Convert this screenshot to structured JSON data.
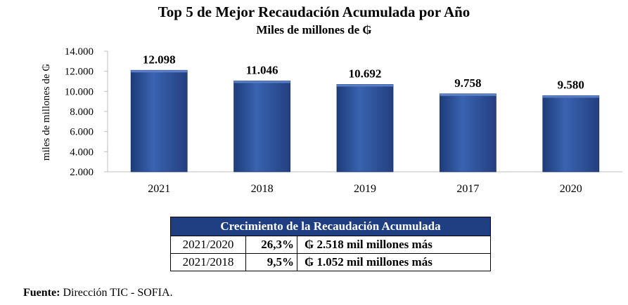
{
  "chart_data": {
    "type": "bar",
    "title": "Top 5 de Mejor Recaudación Acumulada por Año",
    "subtitle": "Miles de millones de ₲",
    "ylabel": "miles de millones de ₲",
    "xlabel": "",
    "categories": [
      "2021",
      "2018",
      "2019",
      "2017",
      "2020"
    ],
    "values": [
      12098,
      11046,
      10692,
      9758,
      9580
    ],
    "value_labels": [
      "12.098",
      "11.046",
      "10.692",
      "9.758",
      "9.580"
    ],
    "ylim": [
      2000,
      14000
    ],
    "yticks": [
      2000,
      4000,
      6000,
      8000,
      10000,
      12000,
      14000
    ],
    "ytick_labels": [
      "2.000",
      "4.000",
      "6.000",
      "8.000",
      "10.000",
      "12.000",
      "14.000"
    ],
    "grid": false,
    "bar_color": "#2f5597"
  },
  "growth_table": {
    "header": "Crecimiento de la Recaudación Acumulada",
    "rows": [
      {
        "period": "2021/2020",
        "pct": "26,3%",
        "amount": "₲ 2.518 mil millones más"
      },
      {
        "period": "2021/2018",
        "pct": "9,5%",
        "amount": "₲ 1.052 mil millones más"
      }
    ]
  },
  "source": {
    "label": "Fuente:",
    "text": " Dirección TIC - SOFIA."
  }
}
